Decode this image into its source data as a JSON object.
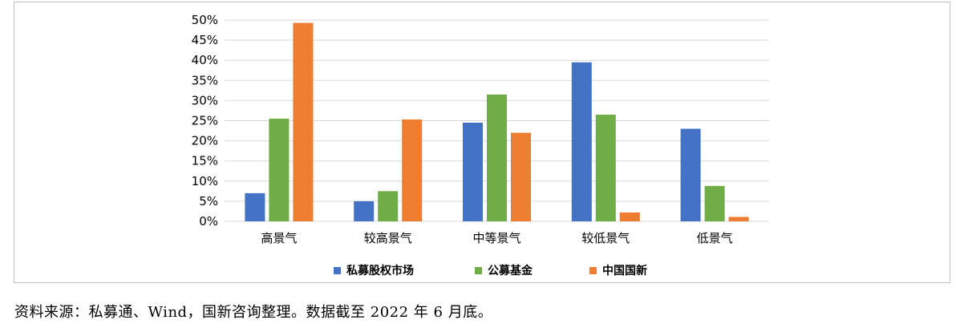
{
  "chart_data": {
    "type": "bar",
    "categories": [
      "高景气",
      "较高景气",
      "中等景气",
      "较低景气",
      "低景气"
    ],
    "series": [
      {
        "name": "私募股权市场",
        "color": "#4472c4",
        "values": [
          7,
          5,
          24.5,
          39.5,
          23
        ]
      },
      {
        "name": "公募基金",
        "color": "#70ad47",
        "values": [
          25.5,
          7.5,
          31.5,
          26.5,
          8.8
        ]
      },
      {
        "name": "中国国新",
        "color": "#ed7d31",
        "values": [
          49.3,
          25.3,
          22,
          2.2,
          1.1
        ]
      }
    ],
    "ylim": [
      0,
      50
    ],
    "yticks": [
      "0%",
      "5%",
      "10%",
      "15%",
      "20%",
      "25%",
      "30%",
      "35%",
      "40%",
      "45%",
      "50%"
    ],
    "grid": true,
    "legend_position": "bottom"
  },
  "source_note": "资料来源：私募通、Wind，国新咨询整理。数据截至 2022 年 6 月底。"
}
